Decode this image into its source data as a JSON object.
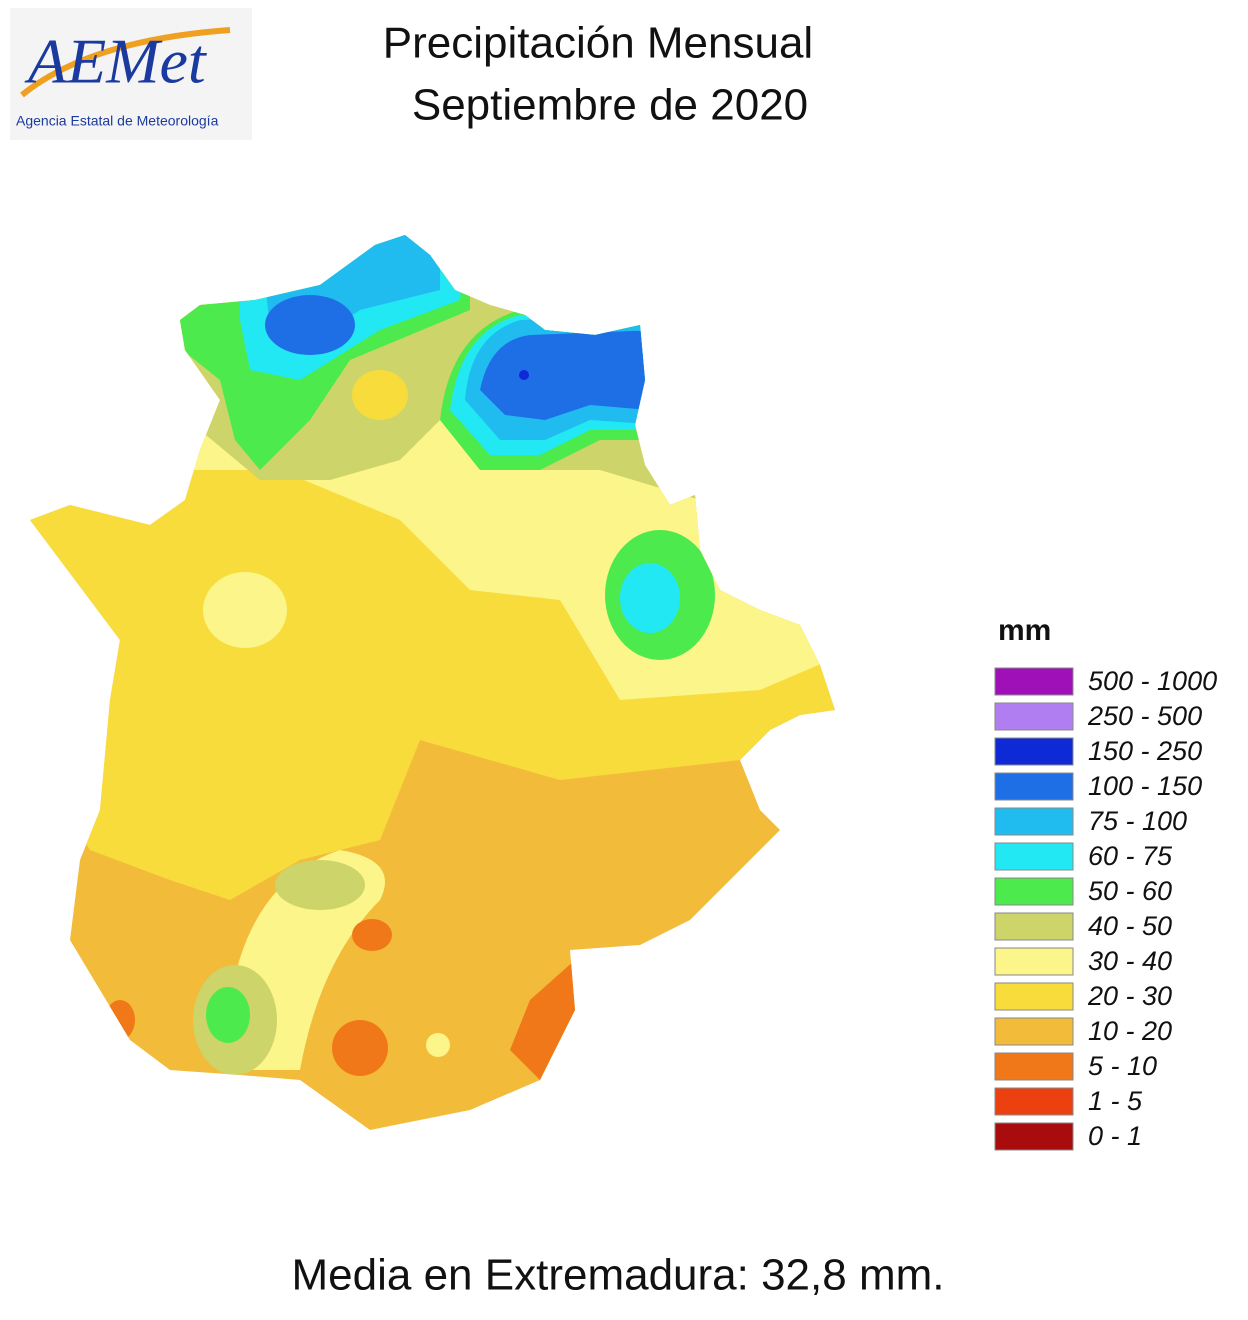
{
  "logo": {
    "text": "AEMet",
    "subtitle": "Agencia Estatal de Meteorología"
  },
  "title": [
    "Precipitación Mensual",
    "Septiembre de 2020"
  ],
  "legend": {
    "unit": "mm",
    "items": [
      {
        "label": "500 - 1000",
        "color": "#a010b8"
      },
      {
        "label": "250 - 500",
        "color": "#b07ef0"
      },
      {
        "label": "150 - 250",
        "color": "#0e2ad6"
      },
      {
        "label": "100 - 150",
        "color": "#1e6ee6"
      },
      {
        "label": "75 - 100",
        "color": "#20bcf0"
      },
      {
        "label": "60 - 75",
        "color": "#22e8f4"
      },
      {
        "label": "50 - 60",
        "color": "#4cea4c"
      },
      {
        "label": "40 - 50",
        "color": "#ccd46a"
      },
      {
        "label": "30 - 40",
        "color": "#fbf58a"
      },
      {
        "label": "20 - 30",
        "color": "#f8dc3c"
      },
      {
        "label": "10 - 20",
        "color": "#f3bb3a"
      },
      {
        "label": "5 - 10",
        "color": "#f07818"
      },
      {
        "label": "1 - 5",
        "color": "#ec4010"
      },
      {
        "label": "0 - 1",
        "color": "#a80c0c"
      }
    ]
  },
  "footer": "Media en Extremadura: 32,8 mm."
}
